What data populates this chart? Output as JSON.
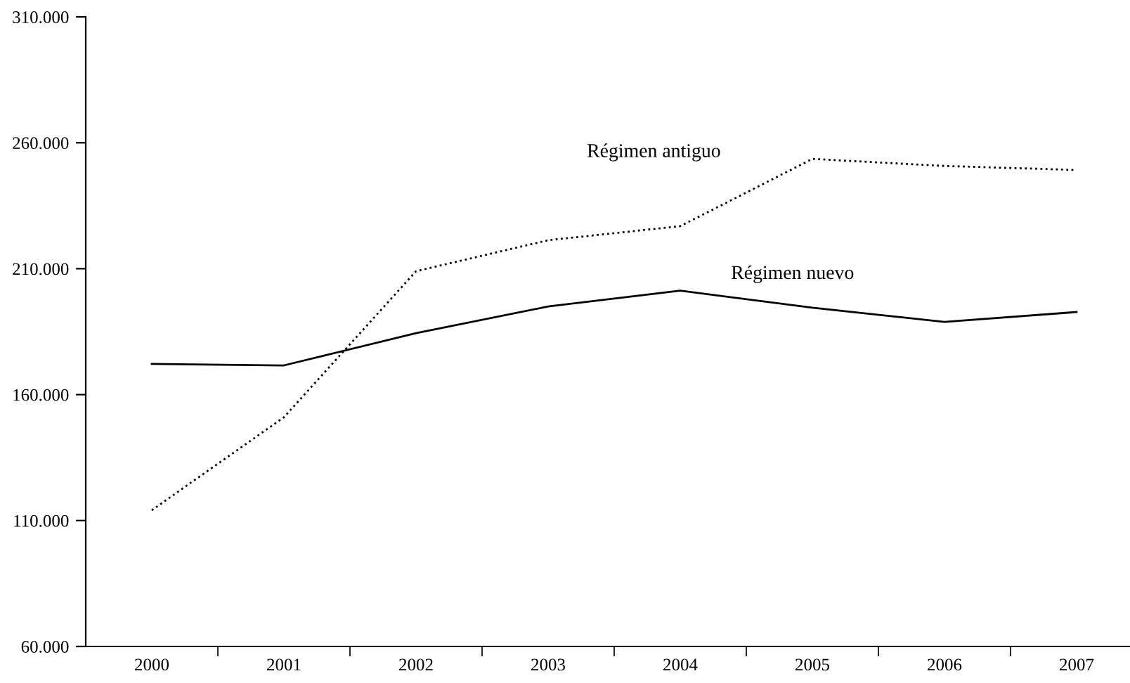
{
  "chart_data": {
    "type": "line",
    "categories": [
      "2000",
      "2001",
      "2002",
      "2003",
      "2004",
      "2005",
      "2006",
      "2007"
    ],
    "series": [
      {
        "name": "Régimen antiguo",
        "color": "#000000",
        "line_style": "dotted",
        "values": [
          114100,
          151000,
          209000,
          221300,
          226900,
          253600,
          250800,
          249200
        ]
      },
      {
        "name": "Régimen nuevo",
        "color": "#000000",
        "line_style": "solid",
        "values": [
          172200,
          171600,
          184400,
          195000,
          201300,
          194500,
          188900,
          192800
        ]
      }
    ],
    "ylim": [
      60000,
      310000
    ],
    "yticks": [
      {
        "value": 60000,
        "label": "60.000"
      },
      {
        "value": 110000,
        "label": "110.000"
      },
      {
        "value": 160000,
        "label": "160.000"
      },
      {
        "value": 210000,
        "label": "210.000"
      },
      {
        "value": 260000,
        "label": "260.000"
      },
      {
        "value": 310000,
        "label": "310.000"
      }
    ],
    "grid": false,
    "legend": false,
    "marker": "none"
  }
}
